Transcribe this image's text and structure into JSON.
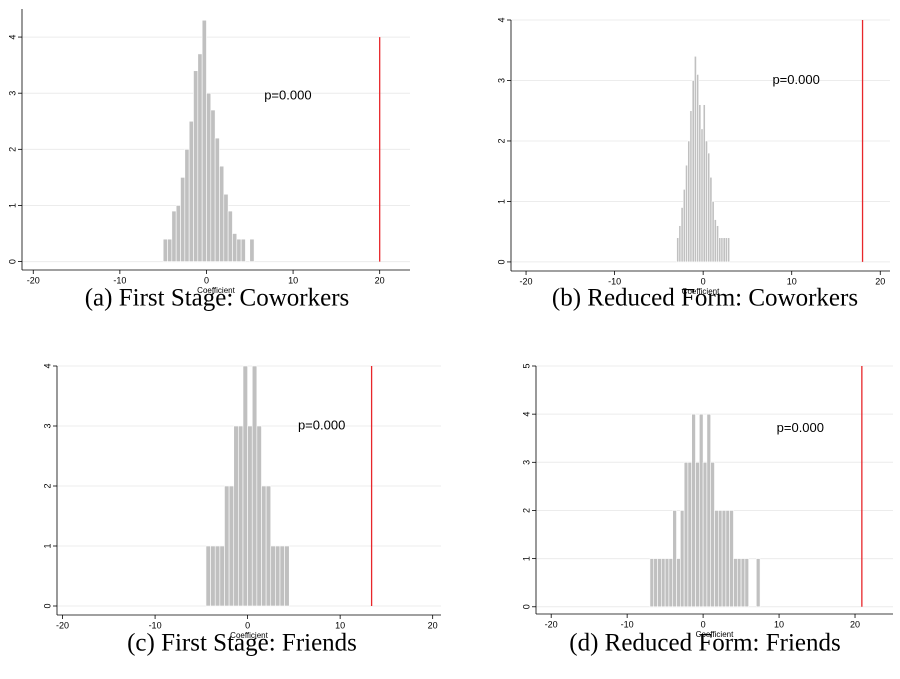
{
  "chart_data": [
    {
      "type": "histogram",
      "caption": "(a) First Stage: Coworkers",
      "x_label": "Coefficient",
      "bins": [
        -5,
        -4.5,
        -4,
        -3.5,
        -3,
        -2.5,
        -2,
        -1.5,
        -1,
        -0.5,
        0,
        0.5,
        1,
        1.5,
        2,
        2.5,
        3,
        3.5,
        4,
        4.5,
        5,
        5.5
      ],
      "values": [
        0.4,
        0.4,
        0.9,
        1,
        1.5,
        2,
        2.5,
        3.4,
        3.7,
        4.3,
        3,
        2.7,
        2.2,
        1.7,
        1.2,
        0.9,
        0.5,
        0.4,
        0.4,
        0,
        0.4
      ],
      "color": "#c0c0c0",
      "xlim": [
        -21.3,
        23.5
      ],
      "ylim": [
        -0.15,
        4.5
      ],
      "xticks": [
        -20,
        -10,
        0,
        10,
        20
      ],
      "yticks": [
        0,
        1,
        2,
        3,
        4
      ],
      "grid": true,
      "reference_line": {
        "x": 20,
        "ymax": 4,
        "color": "#e8262a"
      },
      "annotation": {
        "text": "p=0.000",
        "x": 9.4,
        "y": 2.95
      }
    },
    {
      "type": "histogram",
      "caption": "(b) Reduced Form: Coworkers",
      "x_label": "Coefficient",
      "bins": [
        -3,
        -2.75,
        -2.5,
        -2.25,
        -2,
        -1.75,
        -1.5,
        -1.25,
        -1,
        -0.75,
        -0.5,
        -0.25,
        0,
        0.25,
        0.5,
        0.75,
        1,
        1.25,
        1.5,
        1.75,
        2,
        2.25,
        2.5,
        2.75,
        3
      ],
      "values": [
        0.4,
        0.6,
        0.9,
        1.2,
        1.6,
        2,
        2.5,
        3,
        3.4,
        3.1,
        2.6,
        2.2,
        2.6,
        2,
        1.8,
        1.4,
        1,
        0.7,
        0.6,
        0.4,
        0.4,
        0.4,
        0.4,
        0.4
      ],
      "color": "#c0c0c0",
      "xlim": [
        -21.7,
        21.1
      ],
      "ylim": [
        -0.15,
        4
      ],
      "xticks": [
        -20,
        -10,
        0,
        10,
        20
      ],
      "yticks": [
        0,
        1,
        2,
        3,
        4
      ],
      "grid": true,
      "reference_line": {
        "x": 18,
        "ymax": 4,
        "color": "#e8262a"
      },
      "annotation": {
        "text": "p=0.000",
        "x": 10.5,
        "y": 3
      }
    },
    {
      "type": "histogram",
      "caption": "(c) First Stage: Friends",
      "x_label": "Coefficient",
      "bins": [
        -4.5,
        -4,
        -3.5,
        -3,
        -2.5,
        -2,
        -1.5,
        -1,
        -0.5,
        0,
        0.5,
        1,
        1.5,
        2,
        2.5,
        3,
        3.5,
        4,
        4.5
      ],
      "values": [
        1,
        1,
        1,
        1,
        2,
        2,
        3,
        3,
        4,
        3,
        4,
        3,
        2,
        2,
        1,
        1,
        1,
        1
      ],
      "color": "#c0c0c0",
      "xlim": [
        -20.6,
        20.9
      ],
      "ylim": [
        -0.15,
        4
      ],
      "xticks": [
        -20,
        -10,
        0,
        10,
        20
      ],
      "yticks": [
        0,
        1,
        2,
        3,
        4
      ],
      "grid": true,
      "reference_line": {
        "x": 13.4,
        "ymax": 4,
        "color": "#e8262a"
      },
      "annotation": {
        "text": "p=0.000",
        "x": 8,
        "y": 3
      }
    },
    {
      "type": "histogram",
      "caption": "(d) Reduced Form: Friends",
      "x_label": "Coefficient",
      "bins": [
        -7,
        -6.5,
        -6,
        -5.5,
        -5,
        -4.5,
        -4,
        -3.5,
        -3,
        -2.5,
        -2,
        -1.5,
        -1,
        -0.5,
        0,
        0.5,
        1,
        1.5,
        2,
        2.5,
        3,
        3.5,
        4,
        4.5,
        5,
        5.5,
        6,
        6.5,
        7,
        7.5,
        8
      ],
      "values": [
        1,
        1,
        1,
        1,
        1,
        1,
        2,
        1,
        2,
        3,
        3,
        4,
        3,
        4,
        3,
        4,
        3,
        2,
        2,
        2,
        2,
        2,
        1,
        1,
        1,
        1,
        0,
        0,
        1,
        0
      ],
      "color": "#c0c0c0",
      "xlim": [
        -22,
        25
      ],
      "ylim": [
        -0.15,
        5
      ],
      "xticks": [
        -20,
        -10,
        0,
        10,
        20
      ],
      "yticks": [
        0,
        1,
        2,
        3,
        4,
        5
      ],
      "grid": true,
      "reference_line": {
        "x": 20.9,
        "ymax": 5,
        "color": "#e8262a"
      },
      "annotation": {
        "text": "p=0.000",
        "x": 12.8,
        "y": 3.7
      }
    }
  ]
}
